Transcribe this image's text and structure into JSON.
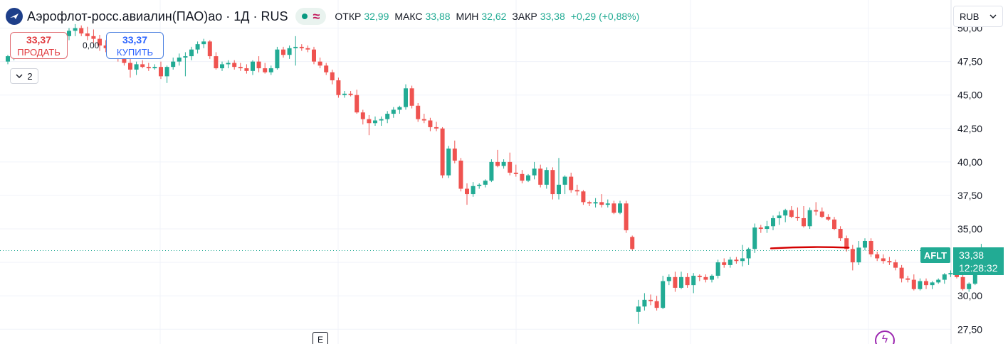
{
  "header": {
    "symbol_title": "Аэрофлот-росс.авиалин(ПАО)ао · 1Д · RUS",
    "ohlc": [
      {
        "label": "ОТКР",
        "value": "32,99"
      },
      {
        "label": "МАКС",
        "value": "33,88"
      },
      {
        "label": "МИН",
        "value": "32,62"
      },
      {
        "label": "ЗАКР",
        "value": "33,38"
      }
    ],
    "change": "+0,29 (+0,88%)"
  },
  "trade": {
    "sell_price": "33,37",
    "sell_label": "ПРОДАТЬ",
    "spread": "0,00",
    "buy_price": "33,37",
    "buy_label": "КУПИТЬ"
  },
  "collapse_count": "2",
  "currency": "RUB",
  "price_tag": {
    "ticker": "AFLT",
    "price": "33,38",
    "countdown": "12:28:32"
  },
  "event_flag": "E",
  "colors": {
    "up": "#22ab94",
    "down": "#ef5350",
    "drawing": "#d40000",
    "axis_text": "#131722"
  },
  "chart_data": {
    "type": "candlestick",
    "title": "",
    "xlabel": "",
    "ylabel": "",
    "ylim": [
      26.4,
      52.1
    ],
    "ticks": [
      "50,00",
      "47,50",
      "45,00",
      "42,50",
      "40,00",
      "37,50",
      "35,00",
      "32,50",
      "30,00",
      "27,50"
    ],
    "tick_values": [
      50,
      47.5,
      45,
      42.5,
      40,
      37.5,
      35,
      32.5,
      30,
      27.5
    ],
    "grid": true,
    "last_price": 33.38,
    "trend_line": {
      "from_bar": 125,
      "to_bar": 137,
      "value": 33.6
    },
    "candles": [
      [
        47.5,
        48.0,
        47.3,
        47.9
      ],
      [
        47.9,
        48.6,
        47.6,
        48.2
      ],
      [
        48.2,
        48.8,
        47.9,
        48.4
      ],
      [
        48.4,
        48.9,
        48.0,
        48.3
      ],
      [
        48.3,
        48.7,
        47.8,
        48.1
      ],
      [
        48.1,
        48.6,
        47.7,
        47.9
      ],
      [
        47.9,
        48.7,
        47.8,
        48.5
      ],
      [
        48.5,
        49.1,
        48.2,
        48.9
      ],
      [
        48.9,
        49.4,
        48.6,
        49.1
      ],
      [
        49.1,
        49.7,
        48.8,
        49.4
      ],
      [
        49.4,
        50.0,
        49.1,
        49.8
      ],
      [
        49.8,
        50.3,
        49.4,
        50.0
      ],
      [
        50.0,
        50.2,
        49.4,
        49.6
      ],
      [
        49.6,
        50.1,
        49.1,
        49.4
      ],
      [
        49.4,
        49.9,
        48.9,
        49.2
      ],
      [
        49.2,
        49.5,
        48.3,
        48.7
      ],
      [
        48.7,
        49.1,
        48.2,
        48.5
      ],
      [
        48.5,
        48.9,
        48.0,
        48.2
      ],
      [
        48.2,
        48.5,
        47.5,
        47.8
      ],
      [
        47.8,
        48.1,
        47.2,
        47.4
      ],
      [
        47.4,
        47.8,
        46.3,
        46.9
      ],
      [
        46.9,
        47.5,
        46.5,
        47.3
      ],
      [
        47.3,
        47.6,
        47.0,
        47.1
      ],
      [
        47.1,
        47.4,
        46.8,
        47.0
      ],
      [
        47.0,
        47.3,
        46.9,
        47.1
      ],
      [
        47.1,
        47.5,
        46.2,
        46.4
      ],
      [
        46.4,
        47.2,
        45.9,
        47.1
      ],
      [
        47.1,
        47.8,
        46.9,
        47.5
      ],
      [
        47.5,
        48.1,
        47.2,
        47.8
      ],
      [
        47.8,
        48.2,
        46.4,
        47.9
      ],
      [
        47.9,
        48.6,
        47.6,
        48.4
      ],
      [
        48.4,
        49.0,
        48.1,
        48.8
      ],
      [
        48.8,
        49.2,
        48.5,
        49.0
      ],
      [
        49.0,
        49.1,
        47.7,
        47.9
      ],
      [
        47.9,
        48.2,
        46.9,
        47.0
      ],
      [
        47.0,
        47.5,
        46.8,
        47.3
      ],
      [
        47.3,
        47.6,
        47.0,
        47.4
      ],
      [
        47.4,
        47.6,
        46.9,
        47.1
      ],
      [
        47.1,
        47.4,
        46.8,
        47.0
      ],
      [
        47.0,
        47.3,
        46.6,
        46.8
      ],
      [
        46.8,
        47.6,
        46.5,
        47.5
      ],
      [
        47.5,
        47.9,
        46.7,
        47.0
      ],
      [
        47.0,
        47.4,
        46.6,
        46.7
      ],
      [
        46.7,
        47.2,
        46.5,
        47.0
      ],
      [
        47.0,
        48.6,
        46.9,
        48.4
      ],
      [
        48.4,
        48.6,
        47.8,
        48.0
      ],
      [
        48.0,
        48.7,
        47.7,
        48.5
      ],
      [
        48.5,
        49.4,
        47.2,
        48.6
      ],
      [
        48.6,
        48.8,
        48.3,
        48.5
      ],
      [
        48.5,
        48.7,
        48.2,
        48.4
      ],
      [
        48.4,
        48.6,
        47.3,
        47.5
      ],
      [
        47.5,
        47.8,
        47.0,
        47.2
      ],
      [
        47.2,
        47.4,
        46.5,
        46.7
      ],
      [
        46.7,
        46.9,
        45.8,
        46.1
      ],
      [
        46.1,
        46.3,
        44.8,
        45.0
      ],
      [
        45.0,
        45.3,
        44.8,
        45.1
      ],
      [
        45.1,
        45.3,
        44.9,
        45.0
      ],
      [
        45.0,
        45.4,
        43.6,
        43.7
      ],
      [
        43.7,
        43.9,
        42.8,
        43.2
      ],
      [
        43.2,
        43.5,
        42.0,
        42.9
      ],
      [
        42.9,
        43.4,
        42.7,
        43.1
      ],
      [
        43.1,
        43.4,
        42.7,
        43.2
      ],
      [
        43.2,
        43.8,
        42.9,
        43.6
      ],
      [
        43.6,
        44.1,
        43.3,
        43.9
      ],
      [
        43.9,
        44.2,
        43.6,
        44.1
      ],
      [
        44.1,
        45.8,
        43.9,
        45.5
      ],
      [
        45.5,
        45.7,
        44.0,
        44.2
      ],
      [
        44.2,
        44.4,
        43.0,
        43.2
      ],
      [
        43.2,
        43.6,
        42.9,
        43.1
      ],
      [
        43.1,
        43.3,
        42.3,
        42.6
      ],
      [
        42.6,
        43.0,
        42.3,
        42.5
      ],
      [
        42.5,
        42.6,
        38.8,
        39.0
      ],
      [
        39.0,
        41.2,
        38.8,
        41.0
      ],
      [
        41.0,
        41.6,
        39.9,
        40.1
      ],
      [
        40.1,
        40.3,
        37.8,
        38.0
      ],
      [
        38.0,
        38.4,
        36.8,
        37.6
      ],
      [
        37.6,
        38.5,
        37.4,
        38.2
      ],
      [
        38.2,
        38.4,
        38.0,
        38.3
      ],
      [
        38.3,
        38.7,
        38.1,
        38.6
      ],
      [
        38.6,
        40.2,
        38.5,
        40.0
      ],
      [
        40.0,
        40.9,
        39.6,
        39.7
      ],
      [
        39.7,
        40.2,
        39.5,
        40.0
      ],
      [
        40.0,
        40.7,
        39.0,
        39.2
      ],
      [
        39.2,
        39.8,
        38.9,
        39.1
      ],
      [
        39.1,
        39.4,
        38.4,
        38.6
      ],
      [
        38.6,
        39.1,
        38.5,
        39.0
      ],
      [
        39.0,
        40.0,
        38.7,
        39.5
      ],
      [
        39.5,
        39.8,
        38.1,
        38.3
      ],
      [
        38.3,
        39.6,
        38.0,
        39.4
      ],
      [
        39.4,
        39.6,
        37.2,
        37.6
      ],
      [
        37.6,
        40.3,
        37.2,
        38.3
      ],
      [
        38.3,
        39.0,
        37.6,
        38.9
      ],
      [
        38.9,
        39.2,
        37.7,
        37.9
      ],
      [
        37.9,
        38.3,
        37.5,
        37.8
      ],
      [
        37.8,
        37.9,
        36.8,
        37.0
      ],
      [
        37.0,
        37.1,
        36.7,
        36.9
      ],
      [
        36.9,
        37.3,
        36.6,
        37.0
      ],
      [
        37.0,
        37.6,
        36.6,
        36.8
      ],
      [
        36.8,
        37.2,
        36.6,
        36.9
      ],
      [
        36.9,
        37.1,
        36.1,
        36.2
      ],
      [
        36.2,
        37.1,
        36.1,
        36.9
      ],
      [
        36.9,
        37.1,
        34.7,
        34.9
      ],
      [
        34.4,
        34.5,
        33.4,
        33.5
      ],
      [
        28.8,
        29.7,
        27.9,
        29.2
      ],
      [
        29.2,
        30.2,
        28.9,
        29.7
      ],
      [
        29.7,
        30.1,
        29.3,
        29.6
      ],
      [
        29.6,
        30.0,
        28.9,
        29.1
      ],
      [
        29.1,
        31.5,
        29.0,
        31.1
      ],
      [
        31.1,
        31.6,
        30.8,
        31.4
      ],
      [
        31.4,
        31.8,
        30.3,
        30.6
      ],
      [
        30.6,
        31.8,
        30.5,
        31.4
      ],
      [
        31.4,
        31.7,
        30.6,
        30.8
      ],
      [
        30.8,
        31.7,
        30.2,
        31.5
      ],
      [
        31.5,
        31.6,
        31.1,
        31.4
      ],
      [
        31.4,
        31.6,
        31.0,
        31.2
      ],
      [
        31.2,
        31.6,
        31.0,
        31.5
      ],
      [
        31.5,
        32.7,
        31.3,
        32.5
      ],
      [
        32.5,
        32.8,
        32.1,
        32.3
      ],
      [
        32.3,
        32.9,
        32.1,
        32.7
      ],
      [
        32.7,
        32.9,
        32.4,
        32.6
      ],
      [
        32.6,
        33.8,
        32.2,
        32.8
      ],
      [
        32.8,
        33.6,
        32.3,
        33.5
      ],
      [
        33.5,
        35.4,
        33.2,
        35.1
      ],
      [
        35.1,
        35.3,
        34.7,
        35.0
      ],
      [
        35.0,
        35.6,
        34.7,
        35.2
      ],
      [
        35.2,
        36.0,
        34.9,
        35.8
      ],
      [
        35.8,
        36.3,
        35.3,
        36.0
      ],
      [
        36.0,
        36.5,
        35.5,
        36.4
      ],
      [
        36.4,
        36.7,
        35.8,
        35.9
      ],
      [
        35.9,
        36.6,
        35.6,
        35.8
      ],
      [
        35.8,
        36.7,
        35.1,
        35.2
      ],
      [
        35.2,
        36.6,
        35.0,
        36.4
      ],
      [
        36.4,
        37.0,
        36.0,
        36.3
      ],
      [
        36.3,
        36.6,
        35.8,
        35.9
      ],
      [
        35.9,
        36.1,
        35.6,
        35.7
      ],
      [
        35.7,
        35.9,
        34.9,
        35.0
      ],
      [
        35.0,
        35.2,
        34.1,
        34.3
      ],
      [
        34.3,
        34.5,
        33.3,
        33.5
      ],
      [
        33.5,
        33.8,
        31.9,
        32.5
      ],
      [
        32.5,
        34.1,
        32.3,
        33.6
      ],
      [
        33.6,
        34.3,
        33.4,
        34.1
      ],
      [
        34.1,
        34.3,
        32.9,
        33.1
      ],
      [
        33.1,
        33.3,
        32.6,
        32.8
      ],
      [
        32.8,
        33.1,
        32.4,
        32.6
      ],
      [
        32.6,
        32.9,
        32.3,
        32.5
      ],
      [
        32.5,
        32.7,
        31.9,
        32.1
      ],
      [
        32.1,
        32.3,
        31.0,
        31.3
      ],
      [
        31.3,
        31.5,
        31.0,
        31.2
      ],
      [
        31.2,
        31.6,
        30.4,
        30.5
      ],
      [
        30.5,
        31.3,
        30.4,
        31.1
      ],
      [
        31.1,
        31.3,
        30.5,
        30.8
      ],
      [
        30.8,
        31.1,
        30.5,
        31.0
      ],
      [
        31.0,
        31.3,
        30.9,
        31.2
      ],
      [
        31.2,
        31.7,
        30.9,
        31.6
      ],
      [
        31.6,
        31.9,
        31.4,
        31.7
      ],
      [
        31.7,
        32.4,
        31.3,
        31.4
      ],
      [
        31.4,
        31.9,
        30.4,
        30.5
      ],
      [
        30.5,
        31.0,
        30.3,
        30.9
      ],
      [
        30.9,
        33.1,
        30.8,
        32.8
      ],
      [
        32.99,
        33.88,
        32.62,
        33.38
      ]
    ]
  }
}
